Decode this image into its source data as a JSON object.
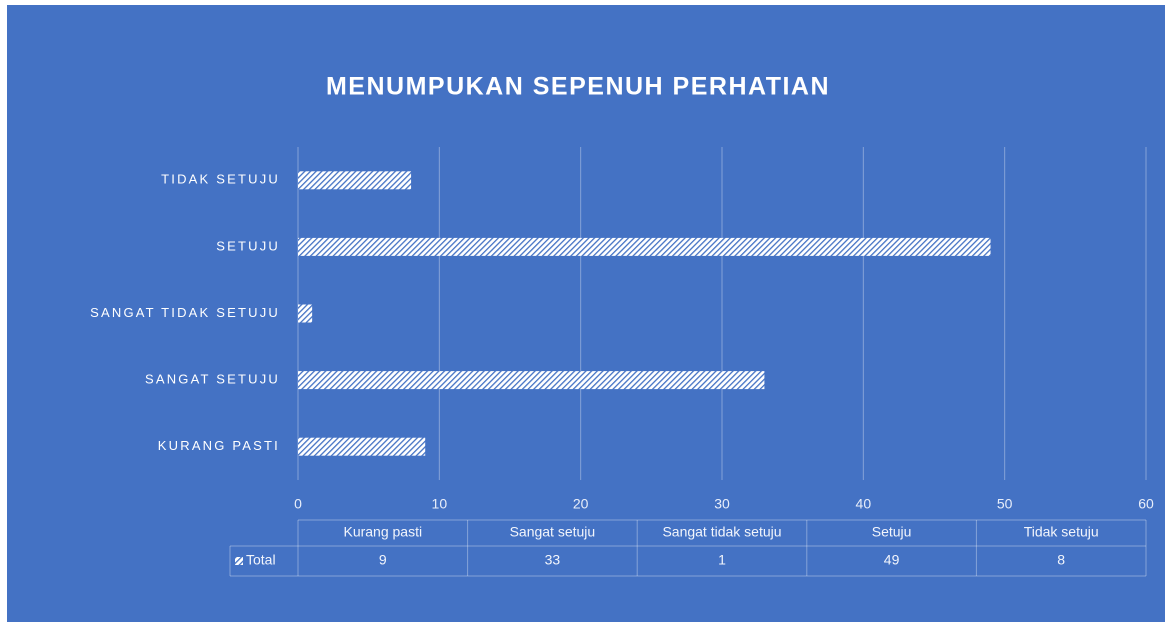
{
  "chart_data": {
    "type": "bar",
    "orientation": "horizontal",
    "title": "MENUMPUKAN  SEPENUH PERHATIAN",
    "categories": [
      "Kurang pasti",
      "Sangat setuju",
      "Sangat tidak setuju",
      "Setuju",
      "Tidak setuju"
    ],
    "axis_labels": [
      "KURANG PASTI",
      "SANGAT SETUJU",
      "SANGAT TIDAK SETUJU",
      "SETUJU",
      "TIDAK SETUJU"
    ],
    "series": [
      {
        "name": "Total",
        "color": "#ffffff",
        "values": [
          9,
          33,
          1,
          49,
          8
        ]
      }
    ],
    "xlim": [
      0,
      60
    ],
    "xticks": [
      0,
      10,
      20,
      30,
      40,
      50,
      60
    ],
    "grid": true,
    "data_table": true
  }
}
